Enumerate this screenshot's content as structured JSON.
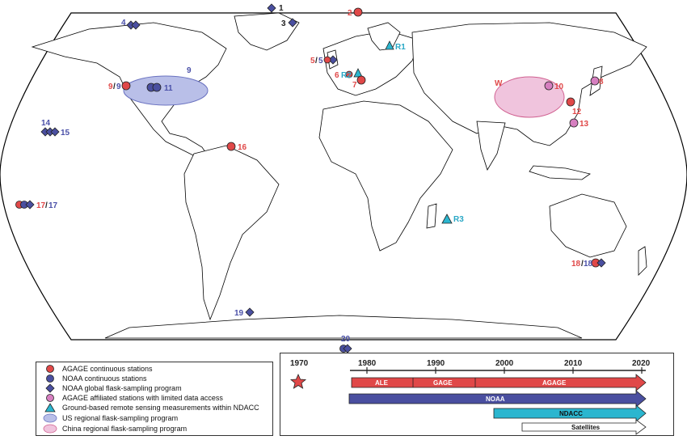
{
  "colors": {
    "agage": "#e04848",
    "noaa": "#4a4fa0",
    "affiliated": "#d67fc0",
    "ndacc": "#2bb6cf",
    "us_region": "#b9bfe8",
    "china_region": "#f0c4dd",
    "label_red": "#e04848",
    "label_blue": "#4a50a8",
    "label_cyan": "#2aa8c6"
  },
  "stations": {
    "s1": "1",
    "s2": "2",
    "s3": "3",
    "s4": "4",
    "s5": "5",
    "s5b": "5",
    "s6": "6",
    "s7": "7",
    "s8": "8",
    "s9": "9",
    "s9b": "9",
    "s9c": "9",
    "sW": "W",
    "s10": "10",
    "s11": "11",
    "s12": "12",
    "s13": "13",
    "s14": "14",
    "s15": "15",
    "s16": "16",
    "s17": "17",
    "s17b": "17",
    "s18": "18",
    "s18b": "18",
    "s19": "19",
    "s20": "20",
    "r1": "R1",
    "r2": "R2",
    "r3": "R3"
  },
  "legend": {
    "items": [
      {
        "icon": "red-circle-icon",
        "label": "AGAGE continuous stations"
      },
      {
        "icon": "blue-circle-icon",
        "label": "NOAA continuous stations"
      },
      {
        "icon": "blue-diamond-icon",
        "label": "NOAA global flask-sampling program"
      },
      {
        "icon": "pink-circle-icon",
        "label": "AGAGE affiliated stations with limited data access"
      },
      {
        "icon": "cyan-triangle-icon",
        "label": "Ground-based remote sensing measurements within NDACC"
      },
      {
        "icon": "blue-ellipse-icon",
        "label": "US regional flask-sampling program"
      },
      {
        "icon": "pink-ellipse-icon",
        "label": "China regional flask-sampling program"
      }
    ]
  },
  "timeline": {
    "start_year": "1970",
    "ticks": [
      "1980",
      "1990",
      "2000",
      "2010",
      "2020"
    ],
    "bars": {
      "ale": "ALE",
      "gage": "GAGE",
      "agage": "AGAGE",
      "noaa": "NOAA",
      "ndacc": "NDACC",
      "satellites": "Satellites"
    }
  }
}
